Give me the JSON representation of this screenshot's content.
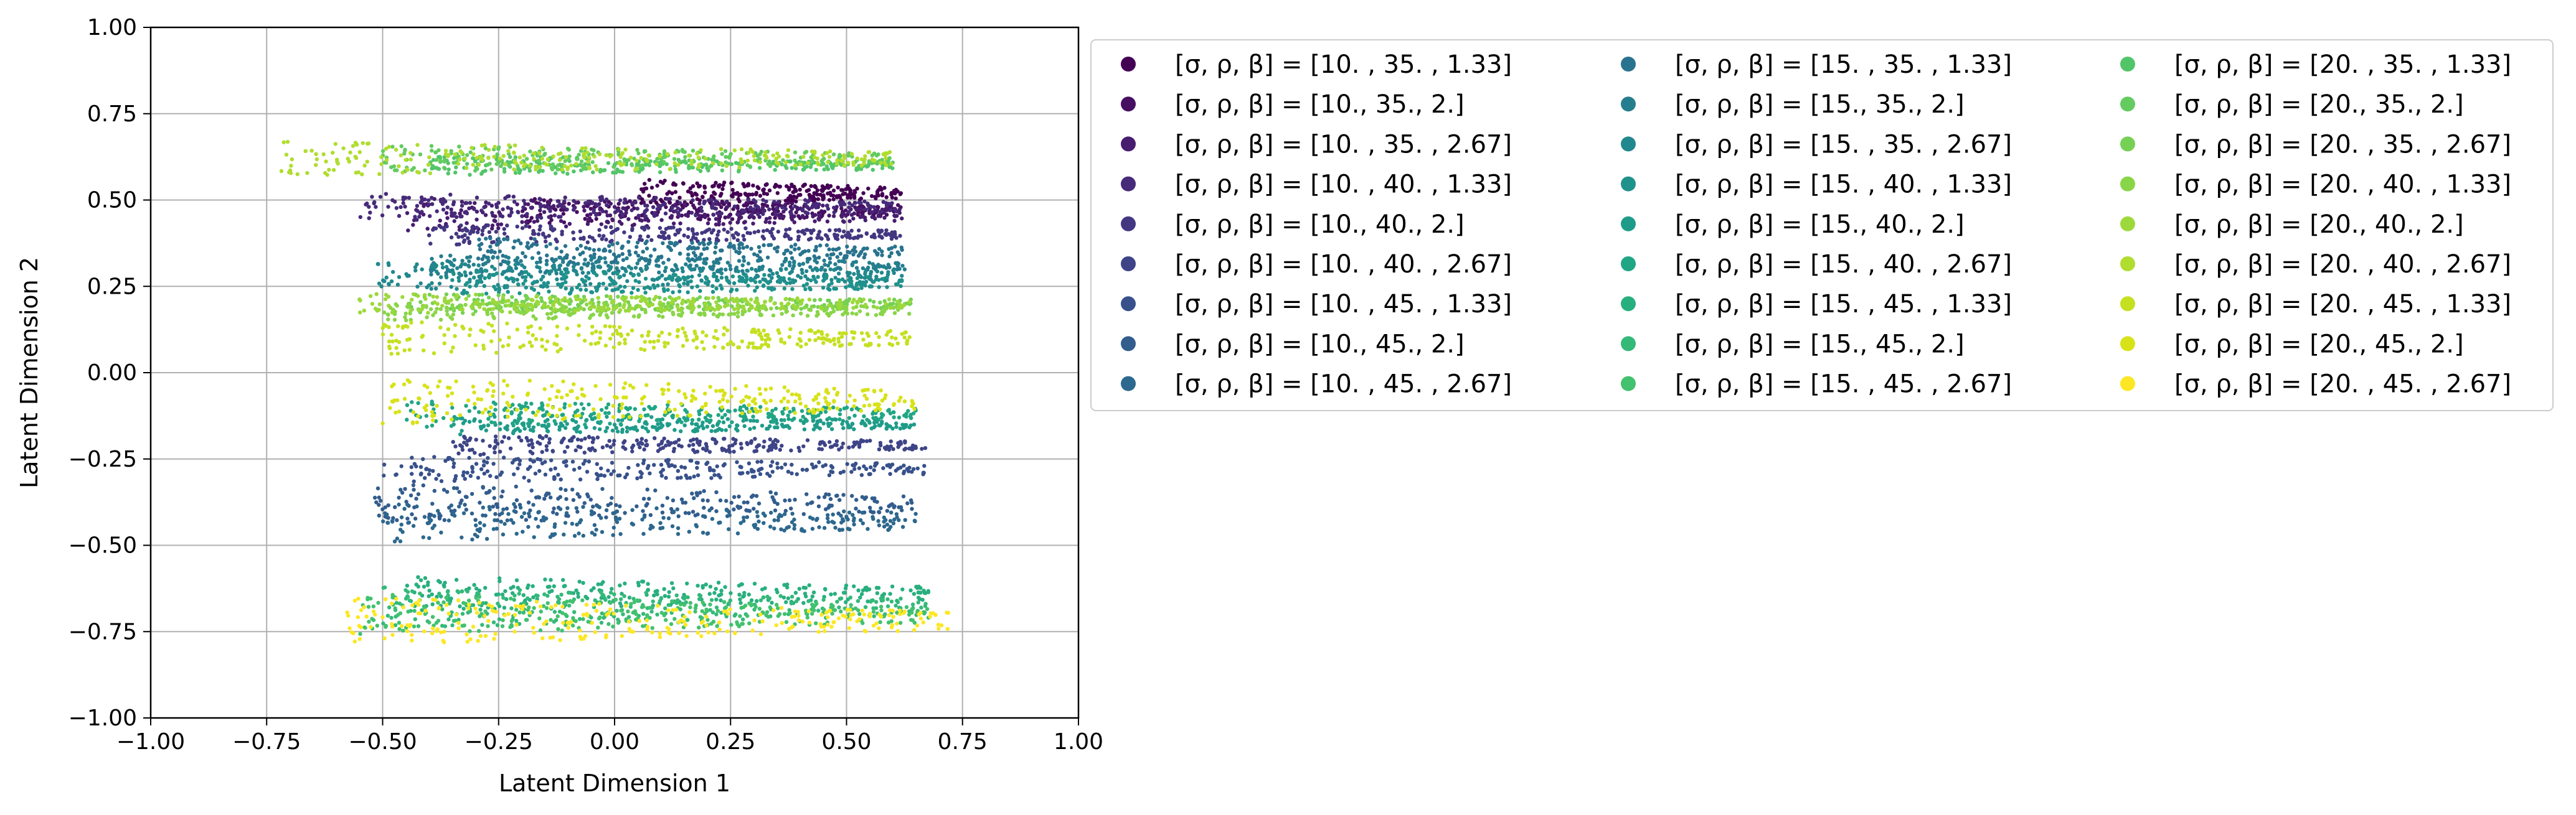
{
  "chart_data": {
    "type": "scatter",
    "xlabel": "Latent Dimension 1",
    "ylabel": "Latent Dimension 2",
    "xlim": [
      -1.0,
      1.0
    ],
    "ylim": [
      -1.0,
      1.0
    ],
    "x_ticks": [
      "−1.00",
      "−0.75",
      "−0.50",
      "−0.25",
      "0.00",
      "0.25",
      "0.50",
      "0.75",
      "1.00"
    ],
    "y_ticks": [
      "−1.00",
      "−0.75",
      "−0.50",
      "−0.25",
      "0.00",
      "0.25",
      "0.50",
      "0.75",
      "1.00"
    ],
    "grid": true,
    "legend_position": "outside-right, 3 columns",
    "legend_prefix": "[σ, ρ, β] = ",
    "series": [
      {
        "name": "[10.  , 35.  ,  1.33]",
        "color": "#440154",
        "x_range": [
          0.05,
          0.62
        ],
        "y_center": 0.52,
        "y_spread": 0.04
      },
      {
        "name": "[10., 35.,  2.]",
        "color": "#470f62",
        "x_range": [
          -0.2,
          0.62
        ],
        "y_center": 0.47,
        "y_spread": 0.04
      },
      {
        "name": "[10.  , 35.  ,  2.67]",
        "color": "#481d6f",
        "x_range": [
          -0.45,
          0.62
        ],
        "y_center": 0.46,
        "y_spread": 0.05
      },
      {
        "name": "[10.  , 40.  ,  1.33]",
        "color": "#472a7a",
        "x_range": [
          -0.55,
          0.62
        ],
        "y_center": 0.48,
        "y_spread": 0.04
      },
      {
        "name": "[10., 40.,  2.]",
        "color": "#433781",
        "x_range": [
          -0.4,
          0.62
        ],
        "y_center": 0.4,
        "y_spread": 0.03
      },
      {
        "name": "[10.  , 40.  ,  2.67]",
        "color": "#3e4487",
        "x_range": [
          -0.35,
          0.67
        ],
        "y_center": -0.21,
        "y_spread": 0.03
      },
      {
        "name": "[10.  , 45.  ,  1.33]",
        "color": "#38518b",
        "x_range": [
          -0.5,
          0.67
        ],
        "y_center": -0.28,
        "y_spread": 0.04
      },
      {
        "name": "[10., 45.,  2.]",
        "color": "#325d8d",
        "x_range": [
          -0.52,
          0.65
        ],
        "y_center": -0.38,
        "y_spread": 0.06
      },
      {
        "name": "[10.  , 45.  ,  2.67]",
        "color": "#2d688e",
        "x_range": [
          -0.5,
          0.65
        ],
        "y_center": -0.43,
        "y_spread": 0.06
      },
      {
        "name": "[15.  , 35.  ,  1.33]",
        "color": "#29738e",
        "x_range": [
          -0.3,
          0.63
        ],
        "y_center": 0.35,
        "y_spread": 0.04
      },
      {
        "name": "[15., 35.,  2.]",
        "color": "#257e8e",
        "x_range": [
          -0.4,
          0.63
        ],
        "y_center": 0.31,
        "y_spread": 0.03
      },
      {
        "name": "[15.  , 35.  ,  2.67]",
        "color": "#21888d",
        "x_range": [
          -0.52,
          0.63
        ],
        "y_center": 0.28,
        "y_spread": 0.04
      },
      {
        "name": "[15.  , 40.  ,  1.33]",
        "color": "#1f928c",
        "x_range": [
          -0.35,
          0.63
        ],
        "y_center": 0.26,
        "y_spread": 0.04
      },
      {
        "name": "[15., 40.,  2.]",
        "color": "#1e9c89",
        "x_range": [
          -0.35,
          0.65
        ],
        "y_center": -0.15,
        "y_spread": 0.03
      },
      {
        "name": "[15.  , 40.  ,  2.67]",
        "color": "#21a685",
        "x_range": [
          -0.45,
          0.65
        ],
        "y_center": -0.12,
        "y_spread": 0.04
      },
      {
        "name": "[15.  , 45.  ,  1.33]",
        "color": "#28af7f",
        "x_range": [
          -0.45,
          0.68
        ],
        "y_center": -0.64,
        "y_spread": 0.05
      },
      {
        "name": "[15., 45.,  2.]",
        "color": "#34b979",
        "x_range": [
          -0.5,
          0.68
        ],
        "y_center": -0.68,
        "y_spread": 0.06
      },
      {
        "name": "[15.  , 45.  ,  2.67]",
        "color": "#42c16e",
        "x_range": [
          -0.55,
          0.68
        ],
        "y_center": -0.7,
        "y_spread": 0.06
      },
      {
        "name": "[20.  , 35.  ,  1.33]",
        "color": "#52c569",
        "x_range": [
          -0.4,
          0.6
        ],
        "y_center": 0.6,
        "y_spread": 0.03
      },
      {
        "name": "[20., 35.,  2.]",
        "color": "#63cb5f",
        "x_range": [
          -0.5,
          0.6
        ],
        "y_center": 0.62,
        "y_spread": 0.04
      },
      {
        "name": "[20.  , 35.  ,  2.67]",
        "color": "#75d054",
        "x_range": [
          -0.45,
          0.64
        ],
        "y_center": 0.2,
        "y_spread": 0.03
      },
      {
        "name": "[20.  , 40.  ,  1.33]",
        "color": "#89d548",
        "x_range": [
          -0.5,
          0.64
        ],
        "y_center": 0.18,
        "y_spread": 0.03
      },
      {
        "name": "[20., 40.,  2.]",
        "color": "#9dd93b",
        "x_range": [
          -0.55,
          0.64
        ],
        "y_center": 0.2,
        "y_spread": 0.03
      },
      {
        "name": "[20.  , 40.  ,  2.67]",
        "color": "#b0dd2f",
        "x_range": [
          -0.72,
          0.6
        ],
        "y_center": 0.62,
        "y_spread": 0.05
      },
      {
        "name": "[20.  , 45.  ,  1.33]",
        "color": "#c5e021",
        "x_range": [
          -0.5,
          0.64
        ],
        "y_center": 0.1,
        "y_spread": 0.05
      },
      {
        "name": "[20., 45.,  2.]",
        "color": "#d8e219",
        "x_range": [
          -0.5,
          0.65
        ],
        "y_center": -0.08,
        "y_spread": 0.07
      },
      {
        "name": "[20.  , 45.  ,  2.67]",
        "color": "#fde725",
        "x_range": [
          -0.58,
          0.72
        ],
        "y_center": -0.72,
        "y_spread": 0.07
      }
    ]
  }
}
